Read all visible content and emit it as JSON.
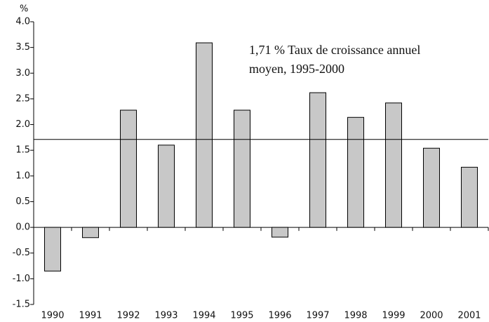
{
  "chart_data": {
    "type": "bar",
    "y_unit": "%",
    "categories": [
      "1990",
      "1991",
      "1992",
      "1993",
      "1994",
      "1995",
      "1996",
      "1997",
      "1998",
      "1999",
      "2000",
      "2001"
    ],
    "values": [
      -0.85,
      -0.2,
      2.28,
      1.6,
      3.59,
      2.28,
      -0.19,
      2.62,
      2.14,
      2.42,
      1.54,
      1.17
    ],
    "color": "#c8c8c8",
    "ylim": [
      -1.5,
      4.0
    ],
    "yticks": [
      {
        "value": -1.5,
        "label": "-1.5"
      },
      {
        "value": -1.0,
        "label": "-1.0"
      },
      {
        "value": -0.5,
        "label": "-0.5"
      },
      {
        "value": 0,
        "label": "0.0"
      },
      {
        "value": 0.5,
        "label": "0.5"
      },
      {
        "value": 1.0,
        "label": "1.0"
      },
      {
        "value": 1.5,
        "label": "1.5"
      },
      {
        "value": 2.0,
        "label": "2.0"
      },
      {
        "value": 2.5,
        "label": "2.5"
      },
      {
        "value": 3.0,
        "label": "3.0"
      },
      {
        "value": 3.5,
        "label": "3.5"
      },
      {
        "value": 4.0,
        "label": "4.0"
      }
    ],
    "reference_value": 1.71,
    "annotation": [
      "1,71 % Taux de croissance annuel",
      "moyen, 1995-2000"
    ]
  }
}
